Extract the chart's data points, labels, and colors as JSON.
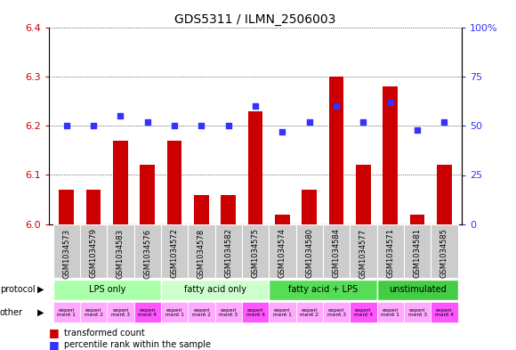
{
  "title": "GDS5311 / ILMN_2506003",
  "samples": [
    "GSM1034573",
    "GSM1034579",
    "GSM1034583",
    "GSM1034576",
    "GSM1034572",
    "GSM1034578",
    "GSM1034582",
    "GSM1034575",
    "GSM1034574",
    "GSM1034580",
    "GSM1034584",
    "GSM1034577",
    "GSM1034571",
    "GSM1034581",
    "GSM1034585"
  ],
  "red_values": [
    6.07,
    6.07,
    6.17,
    6.12,
    6.17,
    6.06,
    6.06,
    6.23,
    6.02,
    6.07,
    6.3,
    6.12,
    6.28,
    6.02,
    6.12
  ],
  "blue_values": [
    50,
    50,
    55,
    52,
    50,
    50,
    50,
    60,
    47,
    52,
    60,
    52,
    62,
    48,
    52
  ],
  "ymin_red": 6.0,
  "ymax_red": 6.4,
  "ymin_blue": 0,
  "ymax_blue": 100,
  "yticks_red": [
    6.0,
    6.1,
    6.2,
    6.3,
    6.4
  ],
  "yticks_blue": [
    0,
    25,
    50,
    75,
    100
  ],
  "protocol_groups": [
    {
      "label": "LPS only",
      "start": 0,
      "end": 4,
      "color": "#aaffaa"
    },
    {
      "label": "fatty acid only",
      "start": 4,
      "end": 8,
      "color": "#ccffcc"
    },
    {
      "label": "fatty acid + LPS",
      "start": 8,
      "end": 12,
      "color": "#55dd55"
    },
    {
      "label": "unstimulated",
      "start": 12,
      "end": 15,
      "color": "#44cc44"
    }
  ],
  "other_colors_light": "#ffaaff",
  "other_colors_dark": "#ff55ff",
  "other_dark_indices": [
    3,
    7,
    11,
    14
  ],
  "other_labels": [
    "experi\nment 1",
    "experi\nment 2",
    "experi\nment 3",
    "experi\nment 4",
    "experi\nment 1",
    "experi\nment 2",
    "experi\nment 3",
    "experi\nment 4",
    "experi\nment 1",
    "experi\nment 2",
    "experi\nment 3",
    "experi\nment 4",
    "experi\nment 1",
    "experi\nment 3",
    "experi\nment 4"
  ],
  "red_color": "#cc0000",
  "blue_color": "#3333ff",
  "sample_bg": "#cccccc",
  "bar_width": 0.55,
  "xlim_left": -0.65,
  "xlim_right": 14.65
}
